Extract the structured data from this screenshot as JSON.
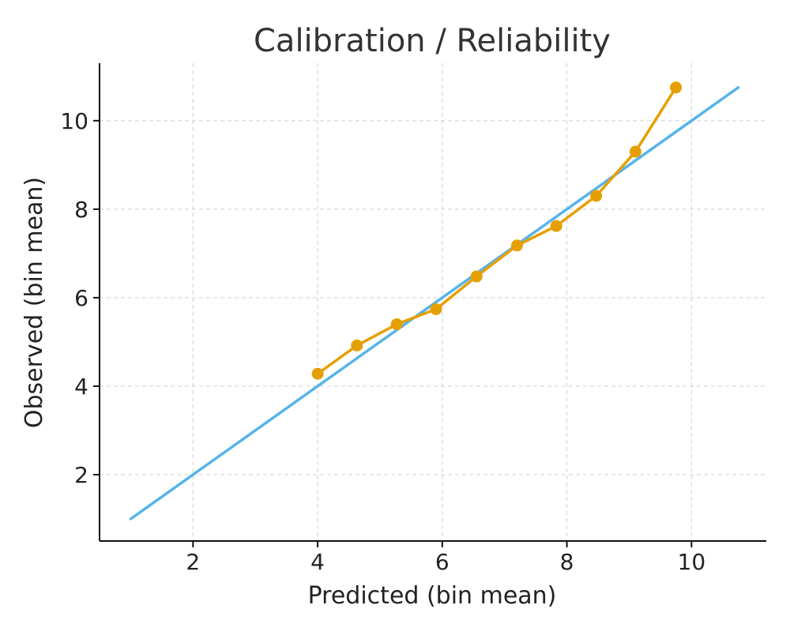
{
  "chart_data": {
    "type": "line",
    "title": "Calibration / Reliability",
    "xlabel": "Predicted (bin mean)",
    "ylabel": "Observed (bin mean)",
    "xlim": [
      0.5,
      11.2
    ],
    "ylim": [
      0.5,
      11.3
    ],
    "xticks": [
      2,
      4,
      6,
      8,
      10
    ],
    "yticks": [
      2,
      4,
      6,
      8,
      10
    ],
    "grid": true,
    "series": [
      {
        "kind": "diagonal-reference",
        "color": "#56b4e9",
        "x": [
          1.0,
          10.75
        ],
        "y": [
          1.0,
          10.75
        ]
      },
      {
        "kind": "calibration-curve",
        "color": "#e69f00",
        "x": [
          4.0,
          4.63,
          5.27,
          5.9,
          6.55,
          7.2,
          7.83,
          8.47,
          9.1,
          9.75
        ],
        "y": [
          4.28,
          4.92,
          5.4,
          5.74,
          6.48,
          7.18,
          7.62,
          8.3,
          9.3,
          10.75
        ]
      }
    ]
  }
}
